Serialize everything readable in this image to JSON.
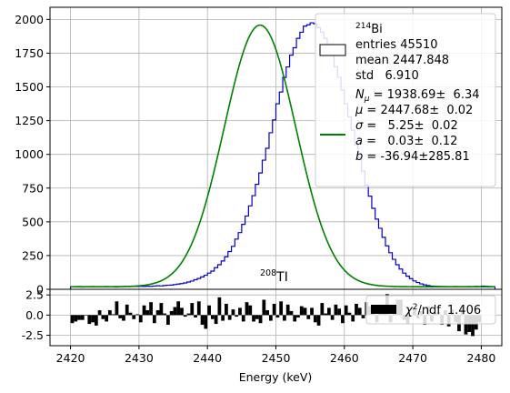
{
  "chart_data": [
    {
      "type": "line",
      "panel": "main",
      "xlim": [
        2417,
        2483
      ],
      "ylim": [
        0,
        2090
      ],
      "grid": true,
      "legend_position": "top-right",
      "xticks": [
        "2420",
        "2430",
        "2440",
        "2450",
        "2460",
        "2470",
        "2480"
      ],
      "yticks": [
        "0",
        "250",
        "500",
        "750",
        "1000",
        "1250",
        "1500",
        "1750",
        "2000"
      ],
      "annotation": {
        "base": "TI",
        "sup": "208"
      },
      "fit_params": {
        "N_mu": 1938.69,
        "mu": 2447.68,
        "sigma": 5.25,
        "a": 0.03,
        "b": -36.94
      },
      "series": [
        {
          "name": "214Bi",
          "style": "histogram",
          "color": "#0000cc",
          "bin_width": 0.5,
          "x_start": 2420,
          "values": [
            18,
            19,
            20,
            17,
            18,
            19,
            20,
            18,
            19,
            18,
            20,
            19,
            18,
            17,
            19,
            20,
            21,
            20,
            22,
            21,
            22,
            21,
            23,
            22,
            24,
            26,
            25,
            28,
            30,
            31,
            35,
            39,
            42,
            47,
            54,
            61,
            71,
            80,
            92,
            104,
            120,
            135,
            160,
            182,
            210,
            241,
            280,
            318,
            372,
            420,
            481,
            543,
            618,
            694,
            778,
            862,
            957,
            1045,
            1160,
            1255,
            1375,
            1462,
            1570,
            1648,
            1735,
            1790,
            1860,
            1905,
            1950,
            1960,
            1975,
            1968,
            1940,
            1905,
            1860,
            1800,
            1735,
            1650,
            1572,
            1478,
            1375,
            1278,
            1180,
            1070,
            975,
            875,
            772,
            690,
            600,
            520,
            452,
            385,
            322,
            271,
            222,
            182,
            150,
            120,
            97,
            79,
            62,
            50,
            40,
            33,
            28,
            24,
            22,
            21,
            20,
            20,
            19,
            18,
            20,
            19,
            18,
            19,
            20,
            19,
            21,
            20,
            24,
            22,
            20,
            19
          ]
        },
        {
          "name": "fit",
          "style": "line",
          "color": "#008000",
          "legend_lines": [
            {
              "base": "N",
              "sub": "μ",
              "text": " = 1938.69±  6.34"
            },
            {
              "base": "μ",
              "text": " = 2447.68±  0.02"
            },
            {
              "base": "σ",
              "text": " =   5.25±  0.02"
            },
            {
              "base": "a",
              "text": " =   0.03±  0.12"
            },
            {
              "base": "b",
              "text": " = -36.94±285.81"
            }
          ]
        }
      ],
      "legend_hist": {
        "sup": "214",
        "name": "Bi",
        "entries": "entries 45510",
        "mean": "mean 2447.848",
        "std": "std   6.910"
      }
    },
    {
      "type": "bar",
      "panel": "residuals",
      "xlabel": "Energy (keV)",
      "ylim": [
        -3.8,
        3.2
      ],
      "yticks": [
        "2.5",
        "0.0",
        "-2.5"
      ],
      "grid": true,
      "chi2": {
        "label": "/ndf",
        "symbol": "χ",
        "sup": "2",
        "value": "1.406"
      },
      "x_start": 2420,
      "bin_width": 0.5,
      "values": [
        -1.0,
        -0.8,
        -0.6,
        -0.6,
        0.0,
        -1.1,
        -0.9,
        -1.3,
        0.6,
        -0.5,
        -0.8,
        0.6,
        0.1,
        1.7,
        -0.4,
        -0.7,
        1.3,
        0.3,
        -0.5,
        0.1,
        -0.9,
        1.2,
        0.6,
        1.6,
        -1.0,
        0.6,
        1.5,
        0.2,
        -1.2,
        0.5,
        1.0,
        1.7,
        0.9,
        -0.2,
        0.2,
        1.5,
        -0.3,
        1.7,
        -1.2,
        -1.7,
        1.2,
        -0.5,
        -1.1,
        2.2,
        -0.7,
        1.4,
        -0.6,
        0.7,
        -0.2,
        0.9,
        -0.8,
        1.6,
        1.2,
        -0.8,
        -0.5,
        -1.0,
        1.9,
        0.6,
        -0.7,
        1.4,
        -0.3,
        1.7,
        -0.7,
        1.3,
        0.5,
        -0.8,
        -0.3,
        1.1,
        0.9,
        -0.5,
        0.9,
        -0.9,
        -1.3,
        1.5,
        0.2,
        0.9,
        -0.6,
        1.3,
        0.8,
        -1.0,
        1.2,
        0.3,
        -0.8,
        1.4,
        0.9,
        -0.4,
        1.6,
        1.1,
        0.7,
        -0.9,
        1.2,
        0.6,
        2.6,
        -0.9,
        0.8,
        1.9,
        1.9,
        -0.6,
        -1.1,
        -0.2,
        0.8,
        -0.4,
        0.5,
        -1.2,
        1.1,
        -0.8,
        0.2,
        0.4,
        -1.2,
        0.6,
        -1.4,
        0.7,
        -0.9,
        -2.0,
        1.2,
        -2.4,
        -2.1,
        -2.6,
        -1.8,
        -0.9
      ]
    }
  ]
}
